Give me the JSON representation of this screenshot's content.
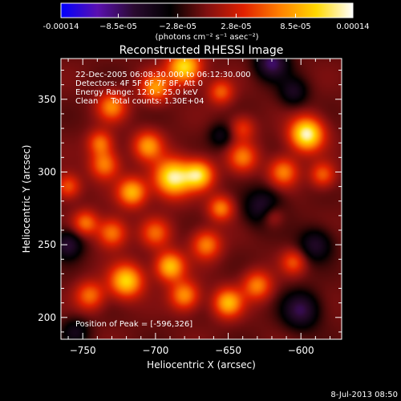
{
  "chart_data": {
    "type": "heatmap",
    "title": "Reconstructed RHESSI Image",
    "xlabel": "Heliocentric X (arcsec)",
    "ylabel": "Heliocentric Y (arcsec)",
    "xlim": [
      -765,
      -572
    ],
    "ylim": [
      185,
      378
    ],
    "x_ticks": [
      -750,
      -700,
      -650,
      -600
    ],
    "y_ticks": [
      200,
      250,
      300,
      350
    ],
    "colorbar": {
      "min": -0.00014,
      "max": 0.00014,
      "tick_values": [
        -0.00014,
        -8.5e-05,
        -2.8e-05,
        2.8e-05,
        8.5e-05,
        0.00014
      ],
      "tick_labels": [
        "-0.00014",
        "−8.5e-05",
        "−2.8e-05",
        "2.8e-05",
        "8.5e-05",
        "0.00014"
      ],
      "unit_label": "(photons cm⁻² s⁻¹ asec⁻²)",
      "colors": [
        "#0000ff",
        "#5a10b0",
        "#2a0a30",
        "#000000",
        "#801010",
        "#e02000",
        "#ff8000",
        "#ffd800",
        "#ffffff"
      ]
    },
    "annotations": [
      "22-Dec-2005 06:08:30.000 to 06:12:30.000",
      "Detectors: 4F 5F 6F 7F 8F, Att 0",
      "Energy Range: 12.0 - 25.0 keV",
      "Clean     Total counts: 1.30E+04"
    ],
    "peak_label": "Position of Peak = [-596,326]",
    "peak": {
      "x": -596,
      "y": 326
    },
    "sources": [
      {
        "x": -596,
        "y": 326,
        "amp": 1.0,
        "sigma": 8
      },
      {
        "x": -688,
        "y": 296,
        "amp": 0.95,
        "sigma": 9
      },
      {
        "x": -670,
        "y": 298,
        "amp": 0.8,
        "sigma": 7
      },
      {
        "x": -716,
        "y": 286,
        "amp": 0.7,
        "sigma": 7
      },
      {
        "x": -735,
        "y": 305,
        "amp": 0.55,
        "sigma": 7
      },
      {
        "x": -705,
        "y": 318,
        "amp": 0.6,
        "sigma": 7
      },
      {
        "x": -680,
        "y": 372,
        "amp": 0.85,
        "sigma": 8
      },
      {
        "x": -700,
        "y": 358,
        "amp": 0.6,
        "sigma": 7
      },
      {
        "x": -730,
        "y": 345,
        "amp": 0.55,
        "sigma": 7
      },
      {
        "x": -738,
        "y": 320,
        "amp": 0.5,
        "sigma": 6
      },
      {
        "x": -655,
        "y": 355,
        "amp": 0.45,
        "sigma": 6
      },
      {
        "x": -640,
        "y": 310,
        "amp": 0.5,
        "sigma": 7
      },
      {
        "x": -612,
        "y": 300,
        "amp": 0.55,
        "sigma": 7
      },
      {
        "x": -585,
        "y": 298,
        "amp": 0.45,
        "sigma": 6
      },
      {
        "x": -620,
        "y": 270,
        "amp": 0.4,
        "sigma": 6
      },
      {
        "x": -700,
        "y": 258,
        "amp": 0.45,
        "sigma": 7
      },
      {
        "x": -730,
        "y": 258,
        "amp": 0.55,
        "sigma": 7
      },
      {
        "x": -748,
        "y": 265,
        "amp": 0.5,
        "sigma": 6
      },
      {
        "x": -665,
        "y": 250,
        "amp": 0.55,
        "sigma": 7
      },
      {
        "x": -690,
        "y": 235,
        "amp": 0.75,
        "sigma": 7
      },
      {
        "x": -720,
        "y": 225,
        "amp": 0.8,
        "sigma": 8
      },
      {
        "x": -650,
        "y": 210,
        "amp": 0.7,
        "sigma": 7
      },
      {
        "x": -680,
        "y": 215,
        "amp": 0.6,
        "sigma": 7
      },
      {
        "x": -630,
        "y": 222,
        "amp": 0.55,
        "sigma": 7
      },
      {
        "x": -605,
        "y": 238,
        "amp": 0.4,
        "sigma": 6
      },
      {
        "x": -745,
        "y": 215,
        "amp": 0.5,
        "sigma": 7
      },
      {
        "x": -760,
        "y": 290,
        "amp": 0.45,
        "sigma": 6
      },
      {
        "x": -655,
        "y": 275,
        "amp": 0.55,
        "sigma": 6
      },
      {
        "x": -640,
        "y": 330,
        "amp": 0.35,
        "sigma": 6
      },
      {
        "x": -620,
        "y": 375,
        "amp": -0.55,
        "sigma": 8
      },
      {
        "x": -625,
        "y": 275,
        "amp": -0.5,
        "sigma": 9
      },
      {
        "x": -760,
        "y": 250,
        "amp": -0.45,
        "sigma": 7
      },
      {
        "x": -600,
        "y": 205,
        "amp": -0.5,
        "sigma": 9
      },
      {
        "x": -590,
        "y": 250,
        "amp": -0.4,
        "sigma": 8
      },
      {
        "x": -605,
        "y": 355,
        "amp": -0.35,
        "sigma": 7
      },
      {
        "x": -755,
        "y": 190,
        "amp": -0.3,
        "sigma": 7
      },
      {
        "x": -655,
        "y": 325,
        "amp": -0.3,
        "sigma": 6
      }
    ]
  },
  "footer": {
    "date": "8-Jul-2013 08:50"
  }
}
